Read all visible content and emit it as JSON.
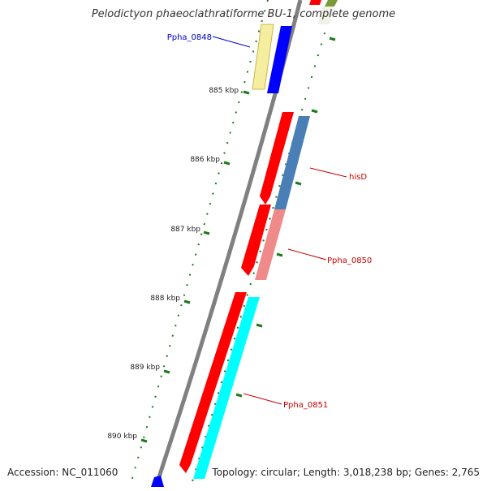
{
  "title": "Pelodictyon phaeoclathratiforme BU-1, complete genome",
  "footer": {
    "accession": "Accession: NC_011060",
    "summary": "Topology: circular; Length: 3,018,238 bp; Genes: 2,765"
  },
  "ticks": [
    {
      "label": "885 kbp"
    },
    {
      "label": "886 kbp"
    },
    {
      "label": "887 kbp"
    },
    {
      "label": "888 kbp"
    },
    {
      "label": "889 kbp"
    },
    {
      "label": "890 kbp"
    }
  ],
  "gene_labels": [
    {
      "name": "Ppha_0848",
      "color": "#0000cc"
    },
    {
      "name": "hisD",
      "color": "#cc0000"
    },
    {
      "name": "Ppha_0850",
      "color": "#cc0000"
    },
    {
      "name": "Ppha_0851",
      "color": "#cc0000"
    }
  ],
  "colors": {
    "backbone": "#808080",
    "tick": "#1a7a1a",
    "cds_red": "#ff0000",
    "cds_blue": "#0000ff",
    "cds_cyan": "#00ffff",
    "cds_yellow": "#f5eea0",
    "cds_steelblue": "#4a7fb5",
    "cds_pink": "#f08a8a",
    "cds_olive": "#7a9a3a"
  }
}
